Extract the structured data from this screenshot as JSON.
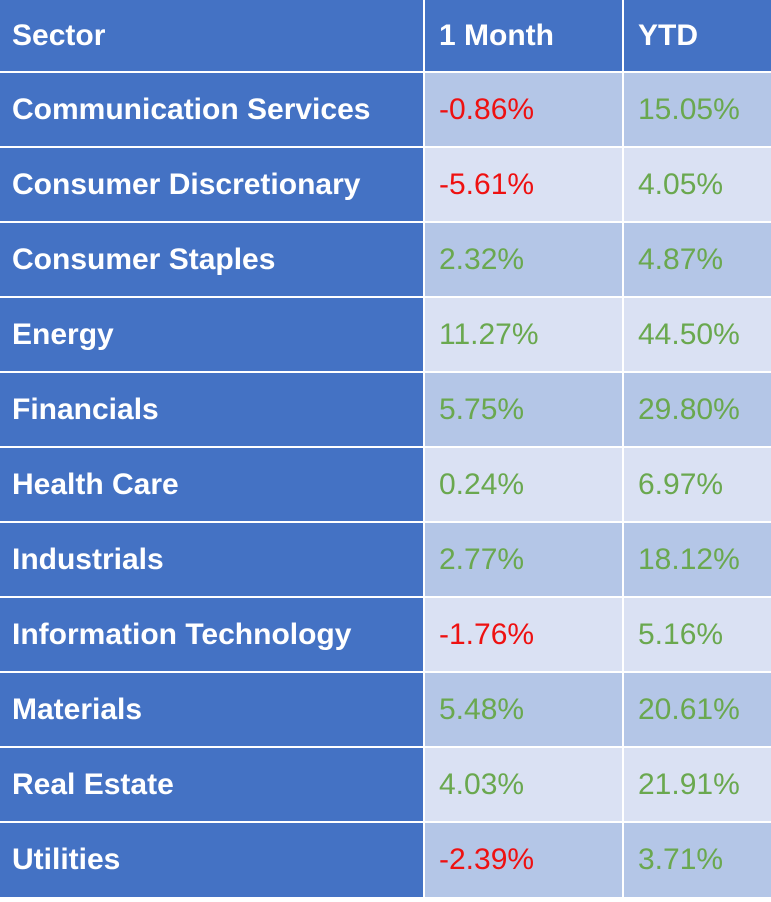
{
  "headers": {
    "sector": "Sector",
    "month": "1 Month",
    "ytd": "YTD"
  },
  "colors": {
    "header_bg": "#4472c4",
    "row_band_a": "#b4c6e7",
    "row_band_b": "#dae1f3",
    "negative": "#ee1111",
    "positive": "#6aa84f"
  },
  "rows": [
    {
      "sector": "Communication Services",
      "month": "-0.86%",
      "ytd": "15.05%"
    },
    {
      "sector": "Consumer Discretionary",
      "month": "-5.61%",
      "ytd": "4.05%"
    },
    {
      "sector": "Consumer Staples",
      "month": "2.32%",
      "ytd": "4.87%"
    },
    {
      "sector": "Energy",
      "month": "11.27%",
      "ytd": "44.50%"
    },
    {
      "sector": "Financials",
      "month": "5.75%",
      "ytd": "29.80%"
    },
    {
      "sector": "Health Care",
      "month": "0.24%",
      "ytd": "6.97%"
    },
    {
      "sector": "Industrials",
      "month": "2.77%",
      "ytd": "18.12%"
    },
    {
      "sector": "Information Technology",
      "month": "-1.76%",
      "ytd": "5.16%"
    },
    {
      "sector": "Materials",
      "month": "5.48%",
      "ytd": "20.61%"
    },
    {
      "sector": "Real Estate",
      "month": "4.03%",
      "ytd": "21.91%"
    },
    {
      "sector": "Utilities",
      "month": "-2.39%",
      "ytd": "3.71%"
    }
  ]
}
